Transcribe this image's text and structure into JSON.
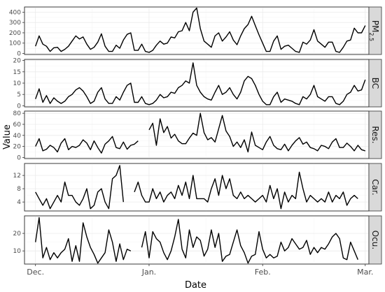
{
  "chart_data": {
    "type": "line",
    "xlabel": "Date",
    "ylabel": "Value",
    "x_ticks": [
      "Dec.",
      "Jan.",
      "Feb.",
      "Mar."
    ],
    "x_tick_days": [
      0,
      31,
      62,
      90
    ],
    "x_range": [
      -3,
      91
    ],
    "panels": [
      {
        "label": "PM2.5",
        "label_main": "PM",
        "label_sub": "2.5",
        "yticks": [
          "0",
          "100",
          "200",
          "300",
          "400"
        ],
        "ytick_values": [
          0,
          100,
          200,
          300,
          400
        ],
        "ylim": [
          -10,
          450
        ],
        "values": [
          70,
          170,
          90,
          70,
          20,
          55,
          60,
          20,
          40,
          70,
          120,
          170,
          140,
          160,
          90,
          40,
          60,
          110,
          190,
          70,
          20,
          20,
          80,
          50,
          130,
          185,
          200,
          30,
          30,
          90,
          20,
          10,
          30,
          80,
          120,
          90,
          100,
          160,
          150,
          210,
          220,
          300,
          220,
          400,
          440,
          240,
          120,
          90,
          60,
          170,
          200,
          120,
          160,
          210,
          130,
          85,
          170,
          240,
          280,
          360,
          270,
          180,
          100,
          20,
          20,
          120,
          170,
          40,
          70,
          80,
          50,
          20,
          10,
          110,
          90,
          130,
          230,
          120,
          90,
          60,
          110,
          110,
          20,
          10,
          60,
          120,
          130,
          245,
          200,
          200,
          270
        ],
        "gap_after": []
      },
      {
        "label": "BC",
        "yticks": [
          "0",
          "5",
          "10",
          "15",
          "20"
        ],
        "ytick_values": [
          0,
          5,
          10,
          15,
          20
        ],
        "ylim": [
          -0.5,
          20.5
        ],
        "values": [
          3,
          7.5,
          1.5,
          4.5,
          1,
          3.5,
          2,
          1,
          2,
          4,
          5,
          7,
          8,
          6.5,
          4,
          1,
          2,
          6,
          8,
          3,
          1,
          1,
          4,
          2.5,
          6,
          9,
          10,
          1.5,
          1.5,
          4,
          1,
          0.5,
          1,
          2.5,
          5,
          3.5,
          4,
          6,
          5.5,
          8,
          9,
          11,
          10,
          19,
          9,
          6,
          4,
          3,
          2.5,
          6,
          9,
          5,
          6,
          8,
          5,
          3,
          6,
          11,
          13,
          12,
          9,
          5,
          2,
          0.5,
          0.5,
          4,
          6,
          1.5,
          3,
          2.5,
          2,
          1,
          0.5,
          4,
          3,
          5,
          9,
          4,
          3,
          2,
          4,
          4,
          1,
          0.5,
          2,
          5,
          6,
          9,
          6.5,
          7,
          11.5
        ],
        "gap_after": []
      },
      {
        "label": "Res.",
        "yticks": [
          "0",
          "20",
          "40",
          "60",
          "80"
        ],
        "ytick_values": [
          0,
          20,
          40,
          60,
          80
        ],
        "ylim": [
          -2,
          84
        ],
        "values": [
          20,
          34,
          12,
          15,
          22,
          18,
          10,
          26,
          34,
          14,
          20,
          18,
          22,
          32,
          26,
          14,
          30,
          18,
          8,
          24,
          30,
          38,
          18,
          16,
          28,
          15,
          22,
          24,
          30,
          null,
          null,
          50,
          62,
          22,
          70,
          45,
          56,
          35,
          42,
          30,
          25,
          25,
          35,
          44,
          40,
          80,
          45,
          32,
          36,
          28,
          52,
          76,
          48,
          38,
          20,
          28,
          18,
          32,
          10,
          46,
          22,
          18,
          14,
          28,
          38,
          22,
          16,
          14,
          24,
          12,
          22,
          30,
          36,
          24,
          28,
          18,
          16,
          12,
          22,
          20,
          16,
          28,
          34,
          18,
          18,
          26,
          20,
          12,
          22,
          14,
          12
        ],
        "gap_after": [
          28
        ]
      },
      {
        "label": "Car.",
        "yticks": [
          "4",
          "8",
          "12"
        ],
        "ytick_values": [
          4,
          8,
          12
        ],
        "ylim": [
          1.3,
          15.6
        ],
        "values": [
          7,
          5,
          3,
          5,
          2,
          4,
          6,
          4,
          10,
          6,
          6,
          4,
          3,
          5,
          8,
          2,
          3,
          7,
          8,
          4,
          2,
          11,
          12,
          15,
          4,
          null,
          null,
          7,
          10,
          6,
          4,
          4,
          8,
          5,
          7,
          4,
          6,
          7,
          5,
          9,
          6,
          10,
          5,
          12,
          5,
          5,
          5,
          4,
          8,
          11,
          6,
          12,
          8,
          11,
          6,
          5,
          7,
          5,
          6,
          5,
          4,
          5,
          6,
          4,
          9,
          5,
          8,
          2,
          7,
          4,
          6,
          5,
          13,
          8,
          4,
          6,
          5,
          4,
          5,
          4,
          7,
          4,
          6,
          5,
          7,
          3,
          5,
          6,
          5
        ],
        "gap_after": [
          24
        ]
      },
      {
        "label": "Ocu.",
        "yticks": [
          "10",
          "20"
        ],
        "ytick_values": [
          10,
          20
        ],
        "ylim": [
          2.5,
          30
        ],
        "values": [
          15,
          29,
          6,
          12,
          5,
          9,
          6,
          9,
          11,
          17,
          4,
          13,
          4,
          26,
          18,
          12,
          8,
          3,
          6,
          9,
          22,
          15,
          4,
          14,
          5,
          11,
          10,
          null,
          null,
          12,
          21,
          6,
          21,
          17,
          15,
          9,
          5,
          10,
          18,
          28,
          11,
          6,
          22,
          12,
          18,
          16,
          7,
          11,
          22,
          12,
          20,
          4,
          7,
          8,
          15,
          22,
          13,
          9,
          3,
          7,
          8,
          21,
          11,
          6,
          8,
          6,
          7,
          15,
          10,
          12,
          17,
          14,
          11,
          12,
          16,
          8,
          12,
          9,
          12,
          11,
          14,
          18,
          20,
          17,
          6,
          5,
          15,
          10,
          5
        ],
        "gap_after": [
          26
        ]
      }
    ]
  }
}
